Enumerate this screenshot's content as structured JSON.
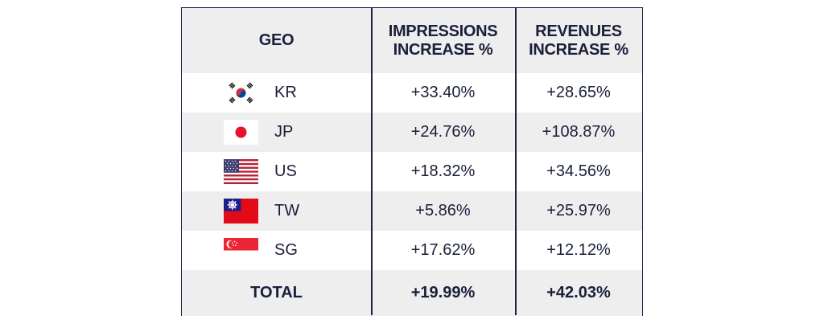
{
  "table": {
    "headers": [
      "GEO",
      "IMPRESSIONS\nINCREASE %",
      "REVENUES\nINCREASE %"
    ],
    "rows": [
      {
        "geo": "KR",
        "flag": "south-korea-flag-icon",
        "impressions": "+33.40%",
        "revenues": "+28.65%"
      },
      {
        "geo": "JP",
        "flag": "japan-flag-icon",
        "impressions": "+24.76%",
        "revenues": "+108.87%"
      },
      {
        "geo": "US",
        "flag": "usa-flag-icon",
        "impressions": "+18.32%",
        "revenues": "+34.56%"
      },
      {
        "geo": "TW",
        "flag": "taiwan-flag-icon",
        "impressions": "+5.86%",
        "revenues": "+25.97%"
      },
      {
        "geo": "SG",
        "flag": "singapore-flag-icon",
        "impressions": "+17.62%",
        "revenues": "+12.12%"
      }
    ],
    "total": {
      "label": "TOTAL",
      "impressions": "+19.99%",
      "revenues": "+42.03%"
    }
  },
  "colors": {
    "border": "#1c2547",
    "text": "#1a1f3a",
    "shade": "#eeeeef"
  }
}
